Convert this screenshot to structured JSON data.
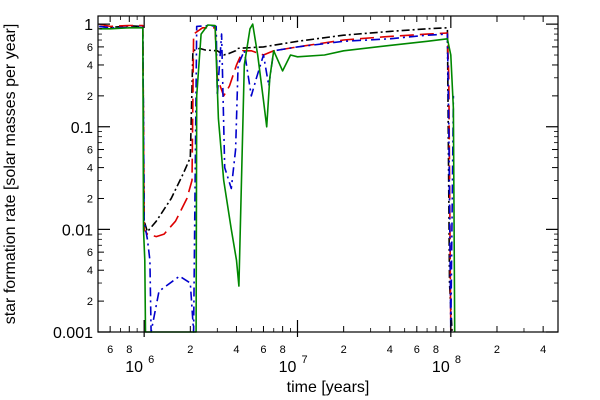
{
  "chart_data": {
    "type": "line",
    "xlabel": "time [years]",
    "ylabel": "star formation rate [solar masses per year]",
    "xscale": "log",
    "yscale": "log",
    "xlim": [
      500000,
      500000000
    ],
    "ylim": [
      0.001,
      1.2
    ],
    "grid": false,
    "legend": "none",
    "y_major_ticks": [
      {
        "value": 1,
        "label": "1"
      },
      {
        "value": 0.1,
        "label": "0.1"
      },
      {
        "value": 0.01,
        "label": "0.01"
      },
      {
        "value": 0.001,
        "label": "0.001"
      }
    ],
    "y_minor_ticks": [
      {
        "value": 0.6,
        "label": "6"
      },
      {
        "value": 0.4,
        "label": "4"
      },
      {
        "value": 0.2,
        "label": "2"
      },
      {
        "value": 0.06,
        "label": "6"
      },
      {
        "value": 0.04,
        "label": "4"
      },
      {
        "value": 0.02,
        "label": "2"
      },
      {
        "value": 0.006,
        "label": "6"
      },
      {
        "value": 0.004,
        "label": "4"
      },
      {
        "value": 0.002,
        "label": "2"
      }
    ],
    "x_major_ticks": [
      {
        "value": 1000000,
        "base": "10",
        "exp": "6"
      },
      {
        "value": 10000000,
        "base": "10",
        "exp": "7"
      },
      {
        "value": 100000000,
        "base": "10",
        "exp": "8"
      }
    ],
    "x_minor_ticks": [
      {
        "value": 600000,
        "label": "6"
      },
      {
        "value": 800000,
        "label": "8"
      },
      {
        "value": 2000000,
        "label": "2"
      },
      {
        "value": 4000000,
        "label": "4"
      },
      {
        "value": 6000000,
        "label": "6"
      },
      {
        "value": 8000000,
        "label": "8"
      },
      {
        "value": 20000000,
        "label": "2"
      },
      {
        "value": 40000000,
        "label": "4"
      },
      {
        "value": 60000000,
        "label": "6"
      },
      {
        "value": 80000000,
        "label": "8"
      },
      {
        "value": 200000000,
        "label": "2"
      },
      {
        "value": 400000000,
        "label": "4"
      }
    ],
    "series": [
      {
        "color": "#000000",
        "dash": "8,3,2,3",
        "points": [
          [
            510000,
            0.95
          ],
          [
            600000,
            0.93
          ],
          [
            800000,
            0.96
          ],
          [
            980000,
            0.95
          ],
          [
            1000000,
            0.012
          ],
          [
            1050000,
            0.0095
          ],
          [
            1200000,
            0.012
          ],
          [
            1500000,
            0.02
          ],
          [
            1800000,
            0.035
          ],
          [
            2000000,
            0.05
          ],
          [
            2080000,
            0.55
          ],
          [
            2300000,
            0.58
          ],
          [
            2500000,
            0.56
          ],
          [
            3000000,
            0.55
          ],
          [
            3300000,
            0.5
          ],
          [
            3600000,
            0.52
          ],
          [
            3950000,
            0.55
          ],
          [
            4050000,
            0.58
          ],
          [
            6000000,
            0.6
          ],
          [
            10000000,
            0.68
          ],
          [
            20000000,
            0.78
          ],
          [
            40000000,
            0.85
          ],
          [
            70000000,
            0.9
          ],
          [
            95000000,
            0.92
          ],
          [
            98000000,
            0.003
          ],
          [
            102000000,
            0.001
          ]
        ]
      },
      {
        "color": "#dd0000",
        "dash": "14,6",
        "points": [
          [
            510000,
            1.0
          ],
          [
            600000,
            0.95
          ],
          [
            800000,
            0.97
          ],
          [
            980000,
            0.97
          ],
          [
            1000000,
            0.01
          ],
          [
            1050000,
            0.009
          ],
          [
            1200000,
            0.0085
          ],
          [
            1350000,
            0.009
          ],
          [
            1600000,
            0.012
          ],
          [
            1900000,
            0.02
          ],
          [
            2050000,
            0.03
          ],
          [
            2100000,
            0.8
          ],
          [
            2400000,
            0.92
          ],
          [
            2900000,
            0.92
          ],
          [
            3000000,
            0.3
          ],
          [
            3300000,
            0.2
          ],
          [
            3600000,
            0.25
          ],
          [
            4000000,
            0.4
          ],
          [
            4400000,
            0.55
          ],
          [
            5000000,
            0.55
          ],
          [
            6000000,
            0.5
          ],
          [
            7000000,
            0.55
          ],
          [
            10000000,
            0.6
          ],
          [
            20000000,
            0.7
          ],
          [
            40000000,
            0.76
          ],
          [
            70000000,
            0.8
          ],
          [
            95000000,
            0.82
          ],
          [
            97000000,
            0.3
          ],
          [
            100000000,
            0.001
          ]
        ]
      },
      {
        "color": "#0000cc",
        "dash": "9,4,2,4",
        "points": [
          [
            510000,
            0.95
          ],
          [
            600000,
            0.92
          ],
          [
            800000,
            0.93
          ],
          [
            980000,
            0.93
          ],
          [
            1000000,
            0.012
          ],
          [
            1050000,
            0.008
          ],
          [
            1090000,
            0.005
          ],
          [
            1110000,
            0.001
          ],
          [
            1250000,
            0.0025
          ],
          [
            1700000,
            0.0035
          ],
          [
            2000000,
            0.003
          ],
          [
            2100000,
            0.001
          ],
          [
            2200000,
            0.95
          ],
          [
            2700000,
            0.97
          ],
          [
            2950000,
            0.95
          ],
          [
            3000000,
            0.2
          ],
          [
            3200000,
            0.8
          ],
          [
            3350000,
            0.04
          ],
          [
            3700000,
            0.025
          ],
          [
            3950000,
            0.06
          ],
          [
            4100000,
            0.4
          ],
          [
            4500000,
            0.55
          ],
          [
            5000000,
            0.2
          ],
          [
            5400000,
            0.3
          ],
          [
            6000000,
            0.5
          ],
          [
            6500000,
            0.25
          ],
          [
            7000000,
            0.55
          ],
          [
            10000000,
            0.6
          ],
          [
            20000000,
            0.68
          ],
          [
            40000000,
            0.72
          ],
          [
            70000000,
            0.78
          ],
          [
            95000000,
            0.8
          ],
          [
            97000000,
            0.1
          ],
          [
            100000000,
            0.001
          ],
          [
            104000000,
            0.2
          ]
        ]
      },
      {
        "color": "#008800",
        "dash": "",
        "points": [
          [
            510000,
            0.9
          ],
          [
            600000,
            0.9
          ],
          [
            800000,
            0.92
          ],
          [
            980000,
            0.92
          ],
          [
            990000,
            0.01
          ],
          [
            1010000,
            0.005
          ],
          [
            1020000,
            0.001
          ],
          [
            2180000,
            0.001
          ],
          [
            2200000,
            0.2
          ],
          [
            2350000,
            0.8
          ],
          [
            2600000,
            0.98
          ],
          [
            2900000,
            0.97
          ],
          [
            3050000,
            0.12
          ],
          [
            3300000,
            0.03
          ],
          [
            3700000,
            0.01
          ],
          [
            4000000,
            0.005
          ],
          [
            4150000,
            0.0028
          ],
          [
            4500000,
            0.4
          ],
          [
            4900000,
            0.9
          ],
          [
            5100000,
            1.0
          ],
          [
            5500000,
            0.5
          ],
          [
            6000000,
            0.18
          ],
          [
            6300000,
            0.1
          ],
          [
            6600000,
            0.3
          ],
          [
            7000000,
            0.55
          ],
          [
            8000000,
            0.35
          ],
          [
            9000000,
            0.5
          ],
          [
            10000000,
            0.48
          ],
          [
            15000000,
            0.5
          ],
          [
            20000000,
            0.55
          ],
          [
            40000000,
            0.62
          ],
          [
            70000000,
            0.68
          ],
          [
            95000000,
            0.72
          ],
          [
            100000000,
            0.5
          ],
          [
            104000000,
            0.15
          ],
          [
            106000000,
            0.001
          ]
        ]
      }
    ]
  }
}
